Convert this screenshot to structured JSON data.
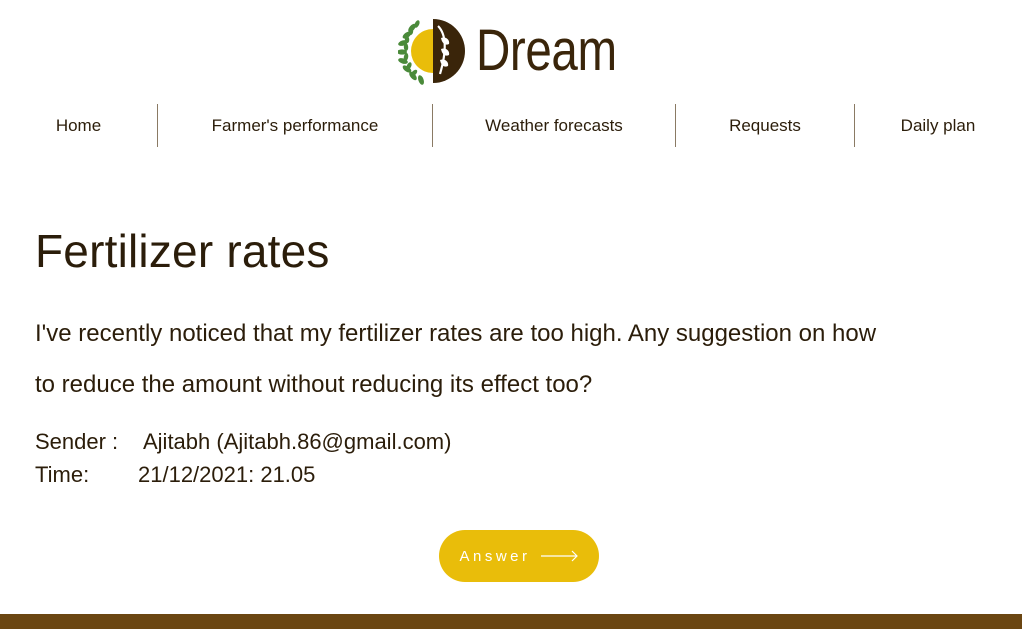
{
  "brand": {
    "name": "Dream",
    "colors": {
      "accent": "#e9bd0a",
      "dark_brown": "#3a250a",
      "green": "#4a8a3a",
      "footer": "#6b4612"
    }
  },
  "nav": {
    "items": [
      {
        "label": "Home"
      },
      {
        "label": "Farmer's performance"
      },
      {
        "label": "Weather forecasts"
      },
      {
        "label": "Requests"
      },
      {
        "label": "Daily plan"
      }
    ]
  },
  "request": {
    "title": "Fertilizer rates",
    "message": "I've recently noticed that my fertilizer rates are too high. Any suggestion on how to reduce the amount without reducing its effect too?",
    "sender_label": "Sender :",
    "sender_value": "Ajitabh (Ajitabh.86@gmail.com)",
    "time_label": "Time:",
    "time_value": "21/12/2021: 21.05"
  },
  "actions": {
    "answer_label": "Answer",
    "answer_icon": "arrow-right-icon"
  }
}
